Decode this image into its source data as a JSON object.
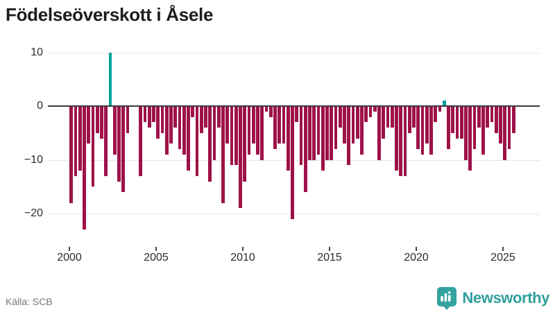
{
  "header": {
    "title": "Födelseöverskott i Åsele"
  },
  "footer": {
    "source": "Källa: SCB",
    "brand": "Newsworthy"
  },
  "chart_data": {
    "type": "bar",
    "title": "Födelseöverskott i Åsele",
    "frequency": "quarterly",
    "start_period": "2000Q1",
    "end_period": "2025Q3",
    "xlabel": "",
    "ylabel": "",
    "ylim": [
      -25,
      12
    ],
    "grid": "horizontal",
    "legend": "none",
    "y_ticks": [
      10,
      0,
      -10,
      -20
    ],
    "y_tick_labels": [
      "10",
      "0",
      "−10",
      "−20"
    ],
    "x_tick_years": [
      2000,
      2005,
      2010,
      2015,
      2020,
      2025
    ],
    "x_tick_labels": [
      "2000",
      "2005",
      "2010",
      "2015",
      "2020",
      "2025"
    ],
    "colors": {
      "negative_bar": "#9e1248",
      "positive_bar": "#00a39c",
      "brand_teal": "#2f9f9c"
    },
    "values": [
      -18,
      -13,
      -12,
      -23,
      -7,
      -15,
      -5,
      -6,
      -13,
      10,
      -9,
      -14,
      -16,
      -5,
      0,
      0,
      -13,
      -3,
      -4,
      -3,
      -6,
      -5,
      -9,
      -7,
      -4,
      -8,
      -9,
      -12,
      -2,
      -13,
      -5,
      -4,
      -14,
      -10,
      -4,
      -18,
      -7,
      -11,
      -11,
      -19,
      -14,
      -9,
      -7,
      -9,
      -10,
      -1,
      -2,
      -8,
      -7,
      -7,
      -12,
      -21,
      -3,
      -11,
      -16,
      -10,
      -10,
      -9,
      -12,
      -10,
      -10,
      -8,
      -4,
      -7,
      -11,
      -7,
      -6,
      -9,
      -3,
      -2,
      -1,
      -10,
      -6,
      -4,
      -4,
      -12,
      -13,
      -13,
      -5,
      -4,
      -8,
      -9,
      -7,
      -9,
      -3,
      -1,
      1,
      -8,
      -5,
      -6,
      -6,
      -10,
      -12,
      -8,
      -4,
      -9,
      -4,
      -3,
      -5,
      -7,
      -10,
      -8,
      -5
    ]
  }
}
